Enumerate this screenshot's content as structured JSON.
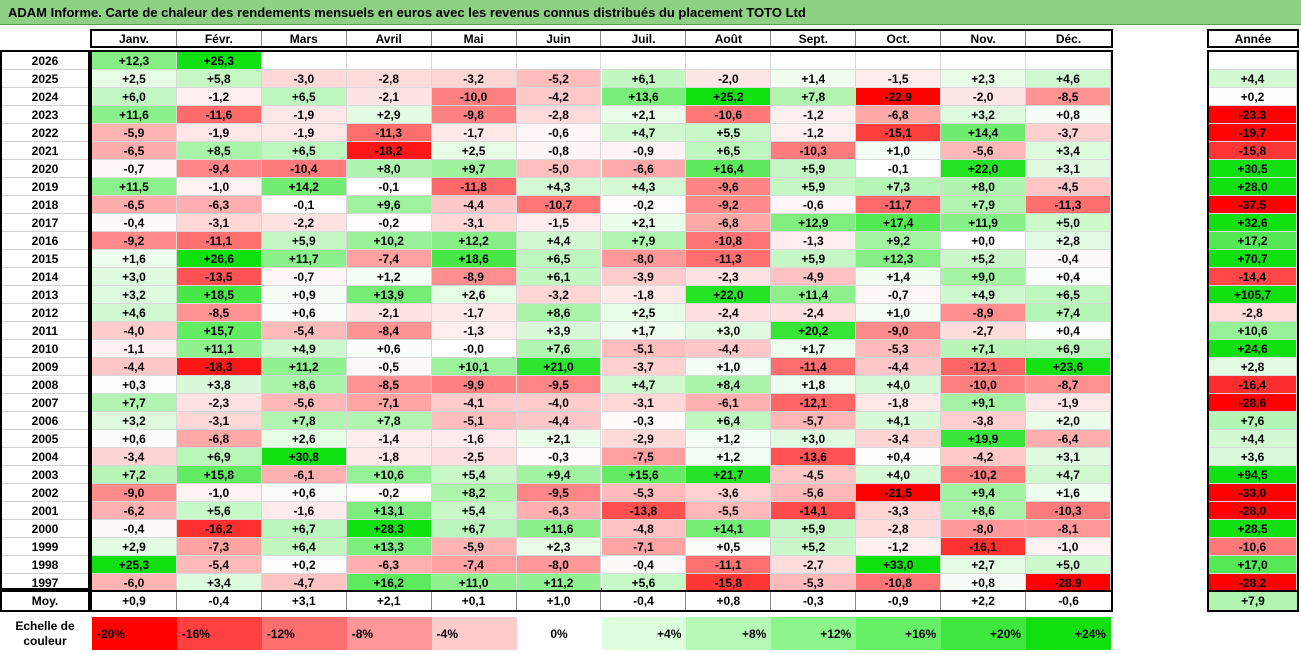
{
  "title": "ADAM Informe. Carte de chaleur des rendements mensuels en euros avec les revenus connus distribués du placement TOTO Ltd",
  "chart_data": {
    "type": "heatmap",
    "title": "ADAM Informe. Carte de chaleur des rendements mensuels en euros avec les revenus connus distribués du placement TOTO Ltd",
    "columns": [
      "Janv.",
      "Févr.",
      "Mars",
      "Avril",
      "Mai",
      "Juin",
      "Juil.",
      "Août",
      "Sept.",
      "Oct.",
      "Nov.",
      "Déc."
    ],
    "annual_header": "Année",
    "avg_label": "Moy.",
    "rows": [
      {
        "year": "2026",
        "values": [
          12.3,
          25.3,
          null,
          null,
          null,
          null,
          null,
          null,
          null,
          null,
          null,
          null
        ],
        "annual": null
      },
      {
        "year": "2025",
        "values": [
          2.5,
          5.8,
          -3.0,
          -2.8,
          -3.2,
          -5.2,
          6.1,
          -2.0,
          1.4,
          -1.5,
          2.3,
          4.6
        ],
        "annual": 4.4
      },
      {
        "year": "2024",
        "values": [
          6.0,
          -1.2,
          6.5,
          -2.1,
          -10.0,
          -4.2,
          13.6,
          25.2,
          7.8,
          -22.9,
          -2.0,
          -8.5
        ],
        "annual": 0.2
      },
      {
        "year": "2023",
        "values": [
          11.6,
          -11.6,
          -1.9,
          2.9,
          -9.8,
          -2.8,
          2.1,
          -10.6,
          -1.2,
          -6.8,
          3.2,
          0.8
        ],
        "annual": -23.3
      },
      {
        "year": "2022",
        "values": [
          -5.9,
          -1.9,
          -1.9,
          -11.3,
          -1.7,
          -0.6,
          4.7,
          5.5,
          -1.2,
          -15.1,
          14.4,
          -3.7
        ],
        "annual": -19.7
      },
      {
        "year": "2021",
        "values": [
          -6.5,
          8.5,
          6.5,
          -18.2,
          2.5,
          -0.8,
          -0.9,
          6.5,
          -10.3,
          1.0,
          -5.6,
          3.4
        ],
        "annual": -15.8
      },
      {
        "year": "2020",
        "values": [
          -0.7,
          -9.4,
          -10.4,
          8.0,
          9.7,
          -5.0,
          -6.6,
          16.4,
          5.9,
          -0.1,
          22.0,
          3.1
        ],
        "annual": 30.5
      },
      {
        "year": "2019",
        "values": [
          11.5,
          -1.0,
          14.2,
          -0.1,
          -11.8,
          4.3,
          4.3,
          -9.6,
          5.9,
          7.3,
          8.0,
          -4.5
        ],
        "annual": 28.0
      },
      {
        "year": "2018",
        "values": [
          -6.5,
          -6.3,
          -0.1,
          9.6,
          -4.4,
          -10.7,
          -0.2,
          -9.2,
          -0.6,
          -11.7,
          7.9,
          -11.3
        ],
        "annual": -37.5
      },
      {
        "year": "2017",
        "values": [
          -0.4,
          -3.1,
          -2.2,
          -0.2,
          -3.1,
          -1.5,
          2.1,
          -6.8,
          12.9,
          17.4,
          11.9,
          5.0
        ],
        "annual": 32.6
      },
      {
        "year": "2016",
        "values": [
          -9.2,
          -11.1,
          5.9,
          10.2,
          12.2,
          4.4,
          7.9,
          -10.8,
          -1.3,
          9.2,
          0.0,
          2.8
        ],
        "annual": 17.2
      },
      {
        "year": "2015",
        "values": [
          1.6,
          26.6,
          11.7,
          -7.4,
          18.6,
          6.5,
          -8.0,
          -11.3,
          5.9,
          12.3,
          5.2,
          -0.4
        ],
        "annual": 70.7
      },
      {
        "year": "2014",
        "values": [
          3.0,
          -13.5,
          -0.7,
          1.2,
          -8.9,
          6.1,
          -3.9,
          -2.3,
          -4.9,
          1.4,
          9.0,
          0.4
        ],
        "annual": -14.4
      },
      {
        "year": "2013",
        "values": [
          3.2,
          18.5,
          0.9,
          13.9,
          2.6,
          -3.2,
          -1.8,
          22.0,
          11.4,
          -0.7,
          4.9,
          6.5
        ],
        "annual": 105.7
      },
      {
        "year": "2012",
        "values": [
          4.6,
          -8.5,
          0.6,
          -2.1,
          -1.7,
          8.6,
          2.5,
          -2.4,
          -2.4,
          1.0,
          -8.9,
          7.4
        ],
        "annual": -2.8
      },
      {
        "year": "2011",
        "values": [
          -4.0,
          15.7,
          -5.4,
          -8.4,
          -1.3,
          3.9,
          1.7,
          3.0,
          20.2,
          -9.0,
          -2.7,
          0.4
        ],
        "annual": 10.6
      },
      {
        "year": "2010",
        "values": [
          -1.1,
          11.1,
          4.9,
          0.6,
          -0.0,
          7.6,
          -5.1,
          -4.4,
          1.7,
          -5.3,
          7.1,
          6.9
        ],
        "annual": 24.6
      },
      {
        "year": "2009",
        "values": [
          -4.4,
          -18.3,
          11.2,
          -0.5,
          10.1,
          21.0,
          -3.7,
          1.0,
          -11.4,
          -4.4,
          -12.1,
          23.6
        ],
        "annual": 2.8
      },
      {
        "year": "2008",
        "values": [
          0.3,
          3.8,
          8.6,
          -8.5,
          -9.9,
          -9.5,
          4.7,
          8.4,
          1.8,
          4.0,
          -10.0,
          -8.7
        ],
        "annual": -16.4
      },
      {
        "year": "2007",
        "values": [
          7.7,
          -2.3,
          -5.6,
          -7.1,
          -4.1,
          -4.0,
          -3.1,
          -6.1,
          -12.1,
          -1.8,
          9.1,
          -1.9
        ],
        "annual": -28.6
      },
      {
        "year": "2006",
        "values": [
          3.2,
          -3.1,
          7.8,
          7.8,
          -5.1,
          -4.4,
          -0.3,
          6.4,
          -5.7,
          4.1,
          -3.8,
          2.0
        ],
        "annual": 7.6
      },
      {
        "year": "2005",
        "values": [
          0.6,
          -6.8,
          2.6,
          -1.4,
          -1.6,
          2.1,
          -2.9,
          1.2,
          3.0,
          -3.4,
          19.9,
          -6.4
        ],
        "annual": 4.4
      },
      {
        "year": "2004",
        "values": [
          -3.4,
          6.9,
          30.8,
          -1.8,
          -2.5,
          -0.3,
          -7.5,
          1.2,
          -13.6,
          0.4,
          -4.2,
          3.1
        ],
        "annual": 3.6
      },
      {
        "year": "2003",
        "values": [
          7.2,
          15.8,
          -6.1,
          10.6,
          5.4,
          9.4,
          15.6,
          21.7,
          -4.5,
          4.0,
          -10.2,
          4.7
        ],
        "annual": 94.5
      },
      {
        "year": "2002",
        "values": [
          -9.0,
          -1.0,
          0.6,
          -0.2,
          8.2,
          -9.5,
          -5.3,
          -3.6,
          -5.6,
          -21.5,
          9.4,
          1.6
        ],
        "annual": -33.0
      },
      {
        "year": "2001",
        "values": [
          -6.2,
          5.6,
          -1.6,
          13.1,
          5.4,
          -6.3,
          -13.8,
          -5.5,
          -14.1,
          -3.3,
          8.6,
          -10.3
        ],
        "annual": -28.0
      },
      {
        "year": "2000",
        "values": [
          -0.4,
          -16.2,
          6.7,
          28.3,
          6.7,
          11.6,
          -4.8,
          14.1,
          5.9,
          -2.8,
          -8.0,
          -8.1
        ],
        "annual": 28.5
      },
      {
        "year": "1999",
        "values": [
          2.9,
          -7.3,
          6.4,
          13.3,
          -5.9,
          2.3,
          -7.1,
          0.5,
          5.2,
          -1.2,
          -16.1,
          -1.0
        ],
        "annual": -10.6
      },
      {
        "year": "1998",
        "values": [
          25.3,
          -5.4,
          0.2,
          -6.3,
          -7.4,
          -8.0,
          -0.4,
          -11.1,
          -2.7,
          33.0,
          2.7,
          5.0
        ],
        "annual": 17.0
      },
      {
        "year": "1997",
        "values": [
          -6.0,
          3.4,
          -4.7,
          16.2,
          11.0,
          11.2,
          5.6,
          -15.8,
          -5.3,
          -10.8,
          0.8,
          -28.9
        ],
        "annual": -28.2
      }
    ],
    "averages": [
      0.9,
      -0.4,
      3.1,
      2.1,
      0.1,
      1.0,
      -0.4,
      0.8,
      -0.3,
      -0.9,
      2.2,
      -0.6
    ],
    "annual_average": 7.9,
    "legend_label": "Echelle de couleur",
    "legend": [
      {
        "label": "-20%",
        "value": -20,
        "color": "#ff0000"
      },
      {
        "label": "-16%",
        "value": -16,
        "color": "#ff4040"
      },
      {
        "label": "-12%",
        "value": -12,
        "color": "#ff6f6f"
      },
      {
        "label": "-8%",
        "value": -8,
        "color": "#ff9999"
      },
      {
        "label": "-4%",
        "value": -4,
        "color": "#ffcccc"
      },
      {
        "label": "0%",
        "value": 0,
        "color": "#ffffff"
      },
      {
        "label": "+4%",
        "value": 4,
        "color": "#ddffdd"
      },
      {
        "label": "+8%",
        "value": 8,
        "color": "#b7fab7"
      },
      {
        "label": "+12%",
        "value": 12,
        "color": "#8cf58c"
      },
      {
        "label": "+16%",
        "value": 16,
        "color": "#66f066"
      },
      {
        "label": "+20%",
        "value": 20,
        "color": "#3ee83e"
      },
      {
        "label": "+24%",
        "value": 24,
        "color": "#10e010"
      }
    ],
    "colors": {
      "title_bg": "#8ed084",
      "negative": "#ff0000",
      "positive": "#10e010",
      "neutral": "#ffffff"
    }
  }
}
